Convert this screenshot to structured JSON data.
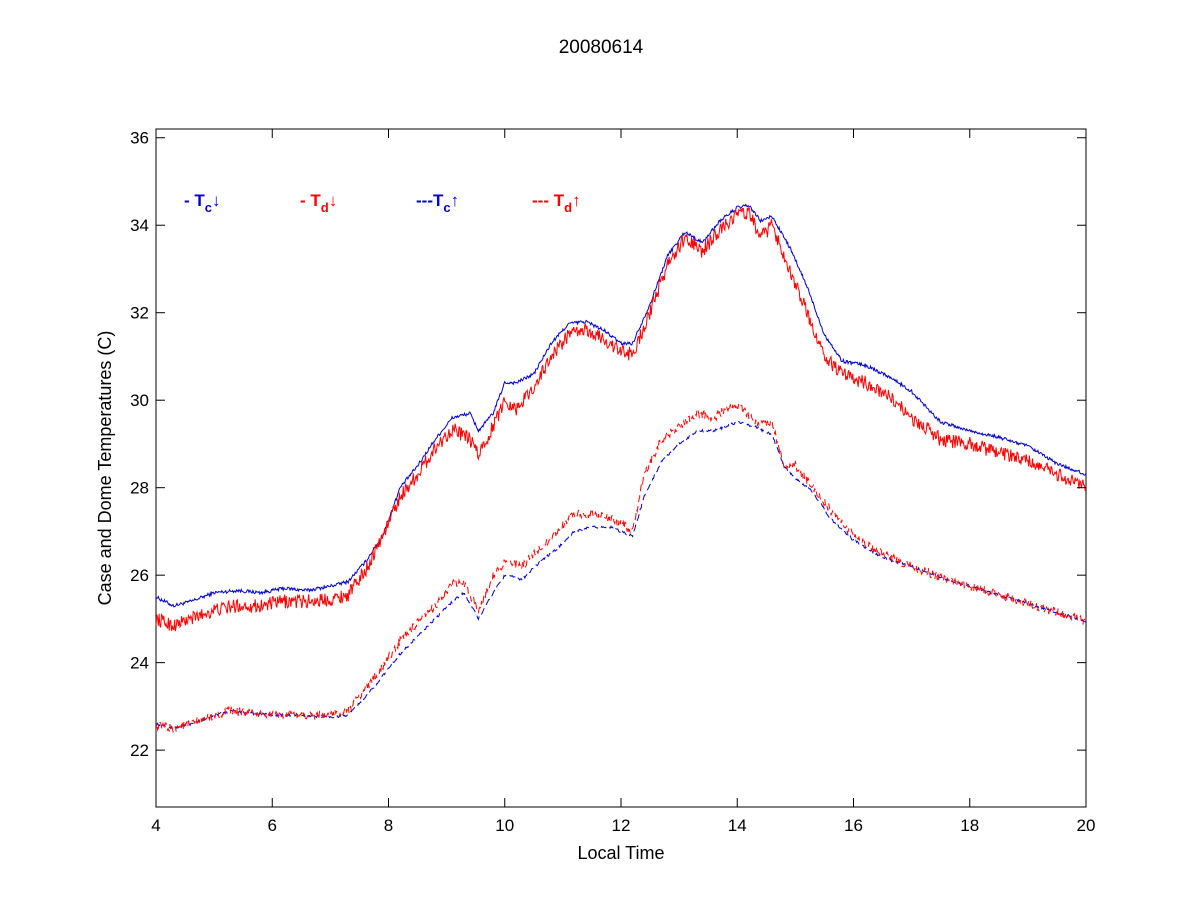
{
  "chart_data": {
    "type": "line",
    "title": "20080614",
    "xlabel": "Local Time",
    "ylabel": "Case and Dome Temperatures (C)",
    "xlim": [
      4,
      20
    ],
    "ylim": [
      20.7,
      36.2
    ],
    "xticks": [
      4,
      6,
      8,
      10,
      12,
      14,
      16,
      18,
      20
    ],
    "yticks": [
      22,
      24,
      26,
      28,
      30,
      32,
      34,
      36
    ],
    "grid": false,
    "legend_position": "top-left",
    "series": [
      {
        "legend_prefix": "- ",
        "legend_main": "T",
        "legend_sub": "c",
        "legend_arrow": "↓",
        "color": "#0000cc",
        "dash": "solid",
        "noise": 0.04,
        "x": [
          4.0,
          4.3,
          4.6,
          5.0,
          5.4,
          5.8,
          6.2,
          6.6,
          7.0,
          7.3,
          7.6,
          7.9,
          8.2,
          8.5,
          8.8,
          9.1,
          9.4,
          9.55,
          9.8,
          10.0,
          10.2,
          10.5,
          10.8,
          11.1,
          11.4,
          11.7,
          12.0,
          12.2,
          12.5,
          12.8,
          13.1,
          13.4,
          13.7,
          14.0,
          14.2,
          14.4,
          14.6,
          14.9,
          15.2,
          15.5,
          15.8,
          16.2,
          16.6,
          17.0,
          17.5,
          18.0,
          18.5,
          19.0,
          19.5,
          20.0
        ],
        "y": [
          25.5,
          25.3,
          25.4,
          25.6,
          25.65,
          25.6,
          25.7,
          25.65,
          25.75,
          25.85,
          26.3,
          26.9,
          28.0,
          28.5,
          29.1,
          29.6,
          29.7,
          29.3,
          29.7,
          30.4,
          30.4,
          30.6,
          31.3,
          31.75,
          31.8,
          31.6,
          31.3,
          31.3,
          32.2,
          33.3,
          33.85,
          33.6,
          34.1,
          34.4,
          34.45,
          34.1,
          34.2,
          33.5,
          32.6,
          31.5,
          30.9,
          30.8,
          30.55,
          30.2,
          29.5,
          29.3,
          29.15,
          28.95,
          28.55,
          28.3
        ]
      },
      {
        "legend_prefix": "- ",
        "legend_main": "T",
        "legend_sub": "d",
        "legend_arrow": "↓",
        "color": "#ff0000",
        "dash": "solid",
        "noise": 0.16,
        "x": [
          4.0,
          4.3,
          4.6,
          5.0,
          5.4,
          5.8,
          6.2,
          6.6,
          7.0,
          7.3,
          7.6,
          7.9,
          8.2,
          8.5,
          8.8,
          9.1,
          9.4,
          9.55,
          9.8,
          10.0,
          10.2,
          10.5,
          10.8,
          11.1,
          11.4,
          11.7,
          12.0,
          12.2,
          12.5,
          12.8,
          13.1,
          13.4,
          13.7,
          14.0,
          14.2,
          14.4,
          14.6,
          14.9,
          15.2,
          15.5,
          15.8,
          16.2,
          16.6,
          17.0,
          17.5,
          18.0,
          18.5,
          19.0,
          19.5,
          20.0
        ],
        "y": [
          25.0,
          24.85,
          25.0,
          25.2,
          25.3,
          25.3,
          25.4,
          25.4,
          25.45,
          25.55,
          26.1,
          26.9,
          27.8,
          28.3,
          28.9,
          29.35,
          29.1,
          28.75,
          29.4,
          30.0,
          29.8,
          30.3,
          31.0,
          31.5,
          31.6,
          31.4,
          31.1,
          31.05,
          32.0,
          33.1,
          33.7,
          33.4,
          33.9,
          34.25,
          34.3,
          33.7,
          34.0,
          33.0,
          32.0,
          31.0,
          30.6,
          30.4,
          30.1,
          29.6,
          29.1,
          29.0,
          28.8,
          28.6,
          28.3,
          28.0
        ]
      },
      {
        "legend_prefix": "---",
        "legend_main": "T",
        "legend_sub": "c",
        "legend_arrow": "↑",
        "color": "#0000cc",
        "dash": "dashed",
        "noise": 0.03,
        "x": [
          4.0,
          4.3,
          4.6,
          5.0,
          5.3,
          5.6,
          6.0,
          6.5,
          7.0,
          7.3,
          7.6,
          7.9,
          8.2,
          8.5,
          8.8,
          9.1,
          9.3,
          9.55,
          9.8,
          10.0,
          10.3,
          10.6,
          10.9,
          11.2,
          11.5,
          11.8,
          12.0,
          12.2,
          12.4,
          12.7,
          13.0,
          13.3,
          13.6,
          13.8,
          14.0,
          14.3,
          14.6,
          14.8,
          15.0,
          15.3,
          15.6,
          16.0,
          16.5,
          17.0,
          17.5,
          18.0,
          18.5,
          19.0,
          19.5,
          20.0
        ],
        "y": [
          22.6,
          22.5,
          22.6,
          22.8,
          22.9,
          22.85,
          22.8,
          22.8,
          22.75,
          22.8,
          23.2,
          23.7,
          24.2,
          24.6,
          25.0,
          25.4,
          25.6,
          25.0,
          25.6,
          26.0,
          25.9,
          26.3,
          26.6,
          27.0,
          27.1,
          27.1,
          27.0,
          26.9,
          27.8,
          28.6,
          29.0,
          29.3,
          29.3,
          29.4,
          29.5,
          29.4,
          29.2,
          28.5,
          28.2,
          27.9,
          27.3,
          26.8,
          26.4,
          26.2,
          25.95,
          25.75,
          25.55,
          25.35,
          25.15,
          24.95
        ]
      },
      {
        "legend_prefix": "--- ",
        "legend_main": "T",
        "legend_sub": "d",
        "legend_arrow": "↑",
        "color": "#ff0000",
        "dash": "dashed",
        "noise": 0.1,
        "x": [
          4.0,
          4.3,
          4.6,
          5.0,
          5.3,
          5.6,
          6.0,
          6.5,
          7.0,
          7.3,
          7.6,
          7.9,
          8.2,
          8.5,
          8.8,
          9.1,
          9.3,
          9.55,
          9.8,
          10.0,
          10.3,
          10.6,
          10.9,
          11.2,
          11.5,
          11.8,
          12.0,
          12.2,
          12.4,
          12.7,
          13.0,
          13.3,
          13.6,
          13.8,
          14.0,
          14.3,
          14.6,
          14.8,
          15.0,
          15.3,
          15.6,
          16.0,
          16.5,
          17.0,
          17.5,
          18.0,
          18.5,
          19.0,
          19.5,
          20.0
        ],
        "y": [
          22.55,
          22.5,
          22.6,
          22.8,
          22.9,
          22.85,
          22.8,
          22.8,
          22.8,
          22.9,
          23.4,
          23.9,
          24.5,
          24.9,
          25.3,
          25.8,
          25.8,
          25.2,
          26.0,
          26.3,
          26.2,
          26.6,
          27.0,
          27.4,
          27.4,
          27.3,
          27.2,
          27.0,
          28.3,
          29.1,
          29.4,
          29.7,
          29.6,
          29.8,
          29.9,
          29.5,
          29.5,
          28.5,
          28.5,
          28.0,
          27.5,
          26.9,
          26.5,
          26.2,
          25.95,
          25.75,
          25.55,
          25.35,
          25.15,
          24.95
        ]
      }
    ]
  }
}
